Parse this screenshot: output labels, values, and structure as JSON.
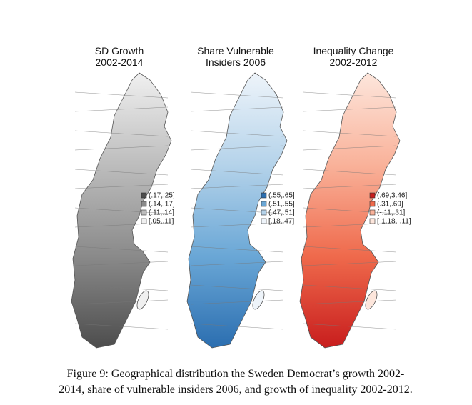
{
  "figure": {
    "panels": [
      {
        "title": [
          "SD Growth",
          "2002-2014"
        ],
        "legend": [
          {
            "label": "(.17,.25]",
            "color": "#4d4d4d"
          },
          {
            "label": "(.14,.17]",
            "color": "#8a8a8a"
          },
          {
            "label": "(.11,.14]",
            "color": "#bdbdbd"
          },
          {
            "label": "[.05,.11]",
            "color": "#f0f0f0"
          }
        ]
      },
      {
        "title": [
          "Share Vulnerable",
          "Insiders 2006"
        ],
        "legend": [
          {
            "label": "(.55,.65]",
            "color": "#2b6eb0"
          },
          {
            "label": "(.51,.55]",
            "color": "#6aa7d6"
          },
          {
            "label": "(.47,.51]",
            "color": "#b5d3ea"
          },
          {
            "label": "[.18,.47]",
            "color": "#eef4fa"
          }
        ]
      },
      {
        "title": [
          "Inequality Change",
          "2002-2012"
        ],
        "legend": [
          {
            "label": "(.69,3.46]",
            "color": "#c81d1d"
          },
          {
            "label": "(.31,.69]",
            "color": "#ef6a4c"
          },
          {
            "label": "(-.11,.31]",
            "color": "#f9b29a"
          },
          {
            "label": "[-1.18,-.11]",
            "color": "#fde6dc"
          }
        ]
      }
    ],
    "caption": [
      "Figure 9: Geographical distribution the Sweden Democrat’s growth 2002-",
      "2014, share of vulnerable insiders 2006, and growth of inequality 2002-2012."
    ]
  }
}
